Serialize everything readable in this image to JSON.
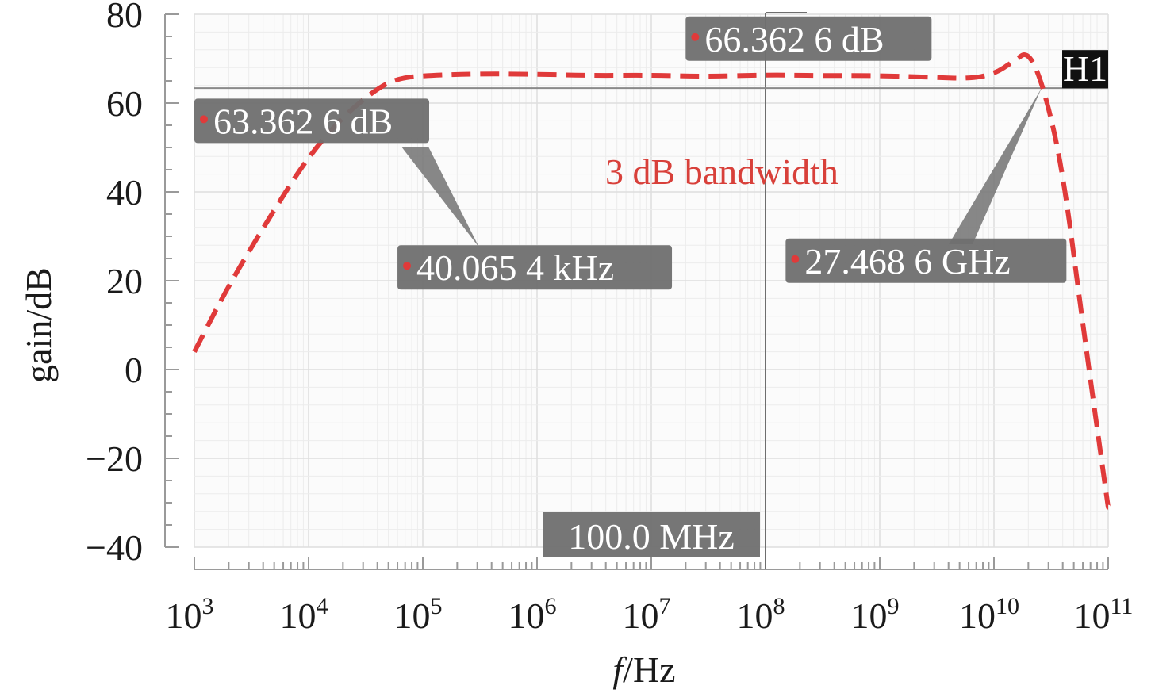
{
  "chart_data": {
    "type": "line",
    "title": "",
    "xlabel_italic": "f",
    "xlabel_rest": "/Hz",
    "ylabel": "gain/dB",
    "x_scale": "log",
    "xlim": [
      1000,
      100000000000
    ],
    "ylim": [
      -40,
      80
    ],
    "grid": true,
    "legend": "none",
    "x_ticks": [
      {
        "value": 1000,
        "base": "10",
        "exp": "3"
      },
      {
        "value": 10000,
        "base": "10",
        "exp": "4"
      },
      {
        "value": 100000,
        "base": "10",
        "exp": "5"
      },
      {
        "value": 1000000,
        "base": "10",
        "exp": "6"
      },
      {
        "value": 10000000,
        "base": "10",
        "exp": "7"
      },
      {
        "value": 100000000,
        "base": "10",
        "exp": "8"
      },
      {
        "value": 1000000000,
        "base": "10",
        "exp": "9"
      },
      {
        "value": 10000000000,
        "base": "10",
        "exp": "10"
      },
      {
        "value": 100000000000,
        "base": "10",
        "exp": "11"
      }
    ],
    "y_ticks": [
      {
        "value": 80,
        "label": "80"
      },
      {
        "value": 60,
        "label": "60"
      },
      {
        "value": 40,
        "label": "40"
      },
      {
        "value": 20,
        "label": "20"
      },
      {
        "value": 0,
        "label": "0"
      },
      {
        "value": -20,
        "label": "−20"
      },
      {
        "value": -40,
        "label": "−40"
      }
    ],
    "series": [
      {
        "color": "#e03a3a",
        "style": "dashed",
        "x": [
          1000,
          2000,
          5000,
          10000,
          20000,
          40065,
          60000,
          100000,
          300000,
          1000000,
          3000000,
          10000000,
          30000000,
          100000000,
          300000000,
          1000000000,
          3000000000,
          6000000000,
          10000000000,
          15000000000,
          20000000000,
          27468600000,
          40000000000,
          60000000000,
          100000000000
        ],
        "y": [
          4,
          19,
          36,
          48,
          57,
          63.36,
          65.5,
          66.2,
          66.6,
          66.5,
          66.2,
          66.3,
          66.0,
          66.36,
          66.2,
          66.2,
          65.8,
          65.5,
          66.5,
          69.5,
          71.8,
          63.36,
          45,
          10,
          -31
        ]
      }
    ],
    "reference_line": {
      "label": "H1",
      "y": 63.3626,
      "color": "#8a8a8a"
    },
    "cursor": {
      "x": 100000000,
      "label": "100.0 MHz"
    },
    "markers": [
      {
        "label": "66.362 6 dB",
        "x": 20000000,
        "y": 74.5
      },
      {
        "label": "63.362 6 dB",
        "x": 1000,
        "y": 56
      },
      {
        "label": "40.065 4 kHz",
        "x": 60000,
        "y": 23
      },
      {
        "label": "27.468 6 GHz",
        "x": 150000000,
        "y": 24.5
      }
    ],
    "annotation": {
      "text": "3 dB bandwidth",
      "color": "#d8403a",
      "x": 100000000,
      "y": 45
    }
  }
}
